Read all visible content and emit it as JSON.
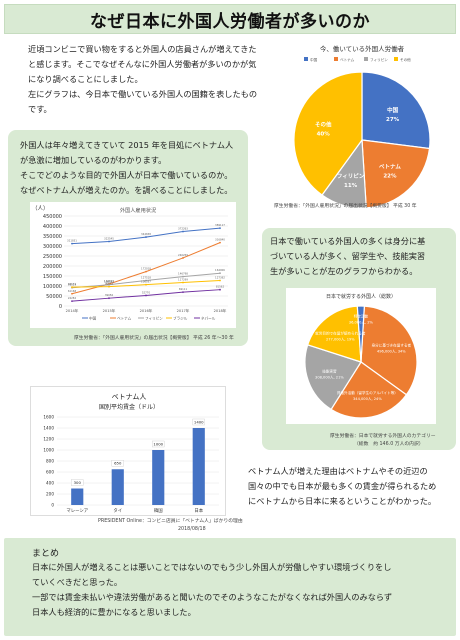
{
  "title": "なぜ日本に外国人労働者が多いのか",
  "intro": {
    "lines": [
      "近頃コンビニで買い物をすると外国人の店員さんが増えてきた",
      "と感じます。そこでなぜそんなに外国人労働者が多いのかが気",
      "になり調べることにしました。",
      "左にグラフは、今日本で働いている外国人の国籍を表したもの",
      "です。"
    ]
  },
  "box1": {
    "lines": [
      "外国人は年々増えてきていて 2015 年を目処にベトナム人",
      "が急激に増加しているのがわかります。",
      "そこでどのような目的で外国人が日本で働いているのか。",
      "なぜベトナム人が増えたのか。を調べることにしました。"
    ]
  },
  "box2": {
    "lines": [
      "日本で働いている外国人の多くは身分に基",
      "づいている人が多く、留学生や、技能実習",
      "生が多いことが左のグラフからわかる。"
    ]
  },
  "right_para": {
    "lines": [
      "ベトナム人が増えた理由はベトナムやその近辺の",
      "国々の中でも日本が最も多くの賃金が得られるため",
      "にベトナムから日本に来るということがわかった。"
    ]
  },
  "summary": {
    "head": "まとめ",
    "lines": [
      "日本に外国人が増えることは悪いことではないのでもう少し外国人が労働しやすい環境づくりをし",
      "ていくべきだと思った。",
      "一部では賃金未払いや違法労働があると聞いたのでそのようなこたがなくなれば外国人のみならず",
      "日本人も経済的に豊かになると思いました。"
    ]
  },
  "sources": {
    "pie1": "厚生労働省：「外国人雇用状況」の届出状況【概要版】 平成 30 年",
    "line": "厚生労働省：「外国人雇用状況」の届出状況【概要版】 平成 26 年～30 年",
    "pie2_a": "厚生労働省：日本で就労する外国人のカテゴリー",
    "pie2_b": "（総数　約 146.0 万人の内訳）",
    "bar_a": "PRESIDENT Online：コンビニ店員に「ベトナム人」ばかりの理由",
    "bar_b": "2018/08/18"
  },
  "chart_data": [
    {
      "type": "pie",
      "title": "今、働いている外国人労働者",
      "legend": [
        "中国",
        "ベトナム",
        "フィリピン",
        "その他"
      ],
      "slices": [
        {
          "label": "中国",
          "pct_label": "27%",
          "value": 27,
          "color": "#4472c4"
        },
        {
          "label": "ベトナム",
          "pct_label": "22%",
          "value": 22,
          "color": "#ed7d31"
        },
        {
          "label": "フィリピン",
          "pct_label": "11%",
          "value": 11,
          "color": "#a5a5a5"
        },
        {
          "label": "その他",
          "pct_label": "40%",
          "value": 40,
          "color": "#ffc000"
        }
      ]
    },
    {
      "type": "line",
      "title": "外国人雇用状況",
      "ylabel": "（人）",
      "ylim": [
        0,
        450000
      ],
      "yticks": [
        "0",
        "50000",
        "100000",
        "150000",
        "200000",
        "250000",
        "300000",
        "350000",
        "400000",
        "450000"
      ],
      "x": [
        "2014年",
        "2015年",
        "2016年",
        "2017年",
        "2018年"
      ],
      "legend": [
        "中国",
        "ベトナム",
        "フィリピン",
        "ブラジル",
        "ネパール"
      ],
      "series": [
        {
          "name": "中国",
          "color": "#4472c4",
          "values": [
            311831,
            322545,
            344658,
            372263,
            389117
          ]
        },
        {
          "name": "ベトナム",
          "color": "#ed7d31",
          "values": [
            61168,
            110013,
            172018,
            240259,
            316840
          ]
        },
        {
          "name": "フィリピン",
          "color": "#a5a5a5",
          "values": [
            91519,
            106533,
            127518,
            146798,
            164006
          ]
        },
        {
          "name": "ブラジル",
          "color": "#ffc000",
          "values": [
            94171,
            96672,
            106597,
            117299,
            127392
          ]
        },
        {
          "name": "ネパール",
          "color": "#7030a0",
          "values": [
            24282,
            39056,
            52770,
            69111,
            81562
          ]
        }
      ]
    },
    {
      "type": "pie",
      "title": "日本で就労する外国人（総数）",
      "slices": [
        {
          "label": "身分に基づき在留する者",
          "value_label": "496,000人, 34%",
          "value": 34,
          "color": "#ed7d31"
        },
        {
          "label": "資格外活動（留学生のアルバイト等）",
          "value_label": "344,000人, 24%",
          "value": 24,
          "color": "#ed7d31"
        },
        {
          "label": "技能実習",
          "value_label": "308,000人, 21%",
          "value": 21,
          "color": "#a5a5a5"
        },
        {
          "label": "就労目的で在留が認められる者",
          "value_label": "277,000人, 19%",
          "value": 19,
          "color": "#ffc000"
        },
        {
          "label": "特定活動",
          "value_label": "36,000人, 2%",
          "value": 2,
          "color": "#4472c4"
        }
      ]
    },
    {
      "type": "bar",
      "title": "ベトナム人",
      "subtitle": "国別平均賃金（ドル）",
      "categories": [
        "マレーシア",
        "タイ",
        "韓国",
        "日本"
      ],
      "values": [
        300,
        650,
        1000,
        1400
      ],
      "value_labels": [
        "300",
        "650",
        "1000",
        "1400"
      ],
      "ylim": [
        0,
        1600
      ],
      "yticks": [
        "0",
        "200",
        "400",
        "600",
        "800",
        "1000",
        "1200",
        "1400",
        "1600"
      ],
      "color": "#4472c4"
    }
  ]
}
